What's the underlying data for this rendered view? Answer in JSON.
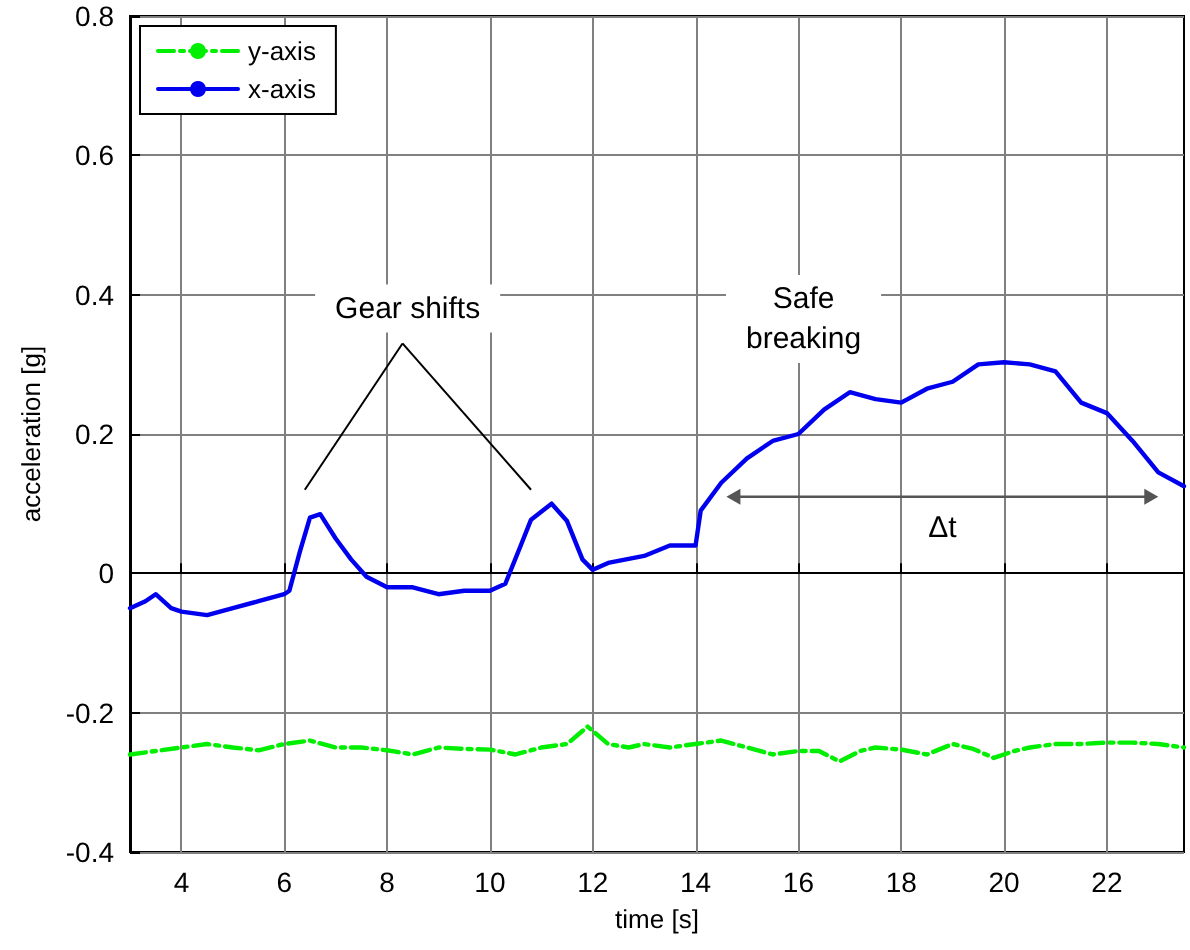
{
  "chart_data": {
    "type": "line",
    "xlabel": "time [s]",
    "ylabel": "acceleration [g]",
    "xlim": [
      3,
      23.5
    ],
    "xticks": [
      4,
      6,
      8,
      10,
      12,
      14,
      16,
      18,
      20,
      22
    ],
    "ylim": [
      -0.4,
      0.8
    ],
    "yticks": [
      -0.4,
      -0.2,
      0,
      0.2,
      0.4,
      0.6,
      0.8
    ],
    "grid": true,
    "legend": "top left",
    "marker": "none",
    "annotations": [
      "Gear shifts",
      "Safe\nbreaking",
      "Δt"
    ],
    "series": [
      {
        "name": "y-axis",
        "color": "#00ee00",
        "line_style": "dashed",
        "x": [
          3,
          3.5,
          4,
          4.5,
          5,
          5.5,
          6,
          6.5,
          7,
          7.5,
          8,
          8.5,
          9,
          9.5,
          10,
          10.5,
          11,
          11.5,
          11.9,
          12.3,
          12.7,
          13,
          13.5,
          14,
          14.5,
          15,
          15.5,
          16,
          16.4,
          16.8,
          17.2,
          17.5,
          18,
          18.5,
          19,
          19.4,
          19.8,
          20.2,
          20.5,
          21,
          21.5,
          22,
          22.5,
          23,
          23.5
        ],
        "values": [
          -0.26,
          -0.255,
          -0.25,
          -0.245,
          -0.25,
          -0.254,
          -0.245,
          -0.24,
          -0.25,
          -0.25,
          -0.254,
          -0.26,
          -0.25,
          -0.252,
          -0.253,
          -0.26,
          -0.25,
          -0.245,
          -0.22,
          -0.245,
          -0.25,
          -0.245,
          -0.25,
          -0.245,
          -0.24,
          -0.25,
          -0.26,
          -0.255,
          -0.255,
          -0.27,
          -0.255,
          -0.25,
          -0.253,
          -0.26,
          -0.245,
          -0.252,
          -0.265,
          -0.255,
          -0.25,
          -0.245,
          -0.245,
          -0.243,
          -0.243,
          -0.245,
          -0.25
        ]
      },
      {
        "name": "x-axis",
        "color": "#0000ee",
        "line_style": "solid",
        "x": [
          3,
          3.3,
          3.5,
          3.8,
          4,
          4.5,
          5,
          5.5,
          6,
          6.1,
          6.3,
          6.5,
          6.7,
          7,
          7.3,
          7.6,
          8,
          8.5,
          9,
          9.5,
          10,
          10.3,
          10.6,
          10.8,
          11.2,
          11.5,
          11.8,
          12,
          12.3,
          13,
          13.5,
          14,
          14.1,
          14.5,
          15,
          15.5,
          16,
          16.5,
          17,
          17.5,
          18,
          18.5,
          19,
          19.5,
          20,
          20.5,
          21,
          21.5,
          22,
          22.5,
          23,
          23.5
        ],
        "values": [
          -0.05,
          -0.04,
          -0.03,
          -0.05,
          -0.055,
          -0.06,
          -0.05,
          -0.04,
          -0.03,
          -0.025,
          0.03,
          0.08,
          0.085,
          0.05,
          0.02,
          -0.005,
          -0.02,
          -0.02,
          -0.03,
          -0.025,
          -0.025,
          -0.015,
          0.04,
          0.077,
          0.1,
          0.075,
          0.02,
          0.005,
          0.015,
          0.025,
          0.04,
          0.04,
          0.09,
          0.13,
          0.165,
          0.19,
          0.2,
          0.235,
          0.26,
          0.25,
          0.245,
          0.265,
          0.275,
          0.3,
          0.303,
          0.3,
          0.29,
          0.245,
          0.23,
          0.19,
          0.145,
          0.125
        ]
      }
    ]
  }
}
